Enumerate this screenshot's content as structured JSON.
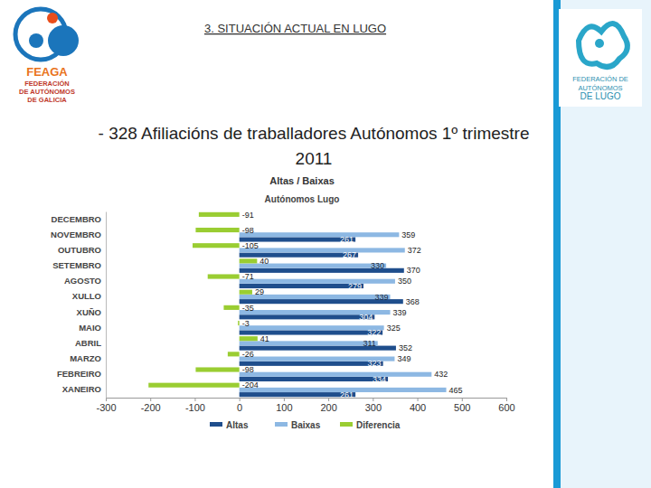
{
  "slide": {
    "header": "3. SITUACIÓN ACTUAL EN LUGO",
    "left_logo": [
      "FEAGA",
      "FEDERACIÓN",
      "DE AUTÓNOMOS",
      "DE GALICIA"
    ],
    "right_logo": [
      "FEDERACIÓN DE",
      "AUTÓNOMOS",
      "DE LUGO"
    ],
    "bullet": [
      "- 328 Afiliacións de traballadores Autónomos 1º trimestre",
      "2011"
    ]
  },
  "chart_data": {
    "type": "bar",
    "orientation": "horizontal",
    "title": "Altas / Baixas",
    "subtitle": "Autónomos Lugo",
    "categories": [
      "DECEMBRO",
      "NOVEMBRO",
      "OUTUBRO",
      "SETEMBRO",
      "AGOSTO",
      "XULLO",
      "XUÑO",
      "MAIO",
      "ABRIL",
      "MARZO",
      "FEBREIRO",
      "XANEIRO"
    ],
    "series": [
      {
        "name": "Altas",
        "color": "#1f4e8c",
        "values": [
          null,
          261,
          267,
          370,
          279,
          368,
          304,
          322,
          352,
          323,
          334,
          261
        ]
      },
      {
        "name": "Baixas",
        "color": "#8db8e3",
        "values": [
          null,
          359,
          372,
          330,
          350,
          339,
          339,
          325,
          311,
          349,
          432,
          465
        ]
      },
      {
        "name": "Diferencia",
        "color": "#9acd32",
        "values": [
          -91,
          -98,
          -105,
          40,
          -71,
          29,
          -35,
          -3,
          41,
          -26,
          -98,
          -204
        ]
      }
    ],
    "xlim": [
      -300,
      600
    ],
    "xticks": [
      -300,
      -200,
      -100,
      0,
      100,
      200,
      300,
      400,
      500,
      600
    ],
    "grid": false,
    "legend": "bottom",
    "data_labels": true
  }
}
